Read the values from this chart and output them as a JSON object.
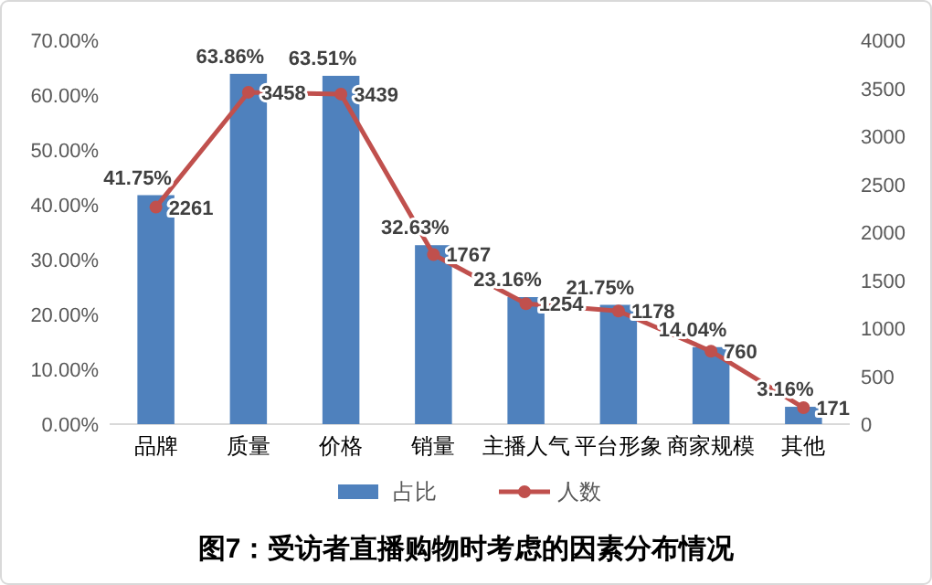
{
  "chart_data": {
    "type": "bar",
    "title": "图7：受访者直播购物时考虑的因素分布情况",
    "categories": [
      "品牌",
      "质量",
      "价格",
      "销量",
      "主播人气",
      "平台形象",
      "商家规模",
      "其他"
    ],
    "series": [
      {
        "name": "占比",
        "color": "#4f81bd",
        "values": [
          41.75,
          63.86,
          63.51,
          32.63,
          23.16,
          21.75,
          14.04,
          3.16
        ],
        "value_labels": [
          "41.75%",
          "63.86%",
          "63.51%",
          "32.63%",
          "23.16%",
          "21.75%",
          "14.04%",
          "3.16%"
        ]
      },
      {
        "name": "人数",
        "type": "line",
        "axis": "y2",
        "color": "#c0504d",
        "marker": "circle",
        "values": [
          2261,
          3458,
          3439,
          1767,
          1254,
          1178,
          760,
          171
        ],
        "value_labels": [
          "2261",
          "3458",
          "3439",
          "1767",
          "1254",
          "1178",
          "760",
          "171"
        ]
      }
    ],
    "ylim": [
      0,
      70
    ],
    "yticks": [
      {
        "value": 0,
        "label": "0.00%"
      },
      {
        "value": 10,
        "label": "10.00%"
      },
      {
        "value": 20,
        "label": "20.00%"
      },
      {
        "value": 30,
        "label": "30.00%"
      },
      {
        "value": 40,
        "label": "40.00%"
      },
      {
        "value": 50,
        "label": "50.00%"
      },
      {
        "value": 60,
        "label": "60.00%"
      },
      {
        "value": 70,
        "label": "70.00%"
      }
    ],
    "y2lim": [
      0,
      4000
    ],
    "y2ticks": [
      0,
      500,
      1000,
      1500,
      2000,
      2500,
      3000,
      3500,
      4000
    ],
    "legend": "bottom"
  }
}
